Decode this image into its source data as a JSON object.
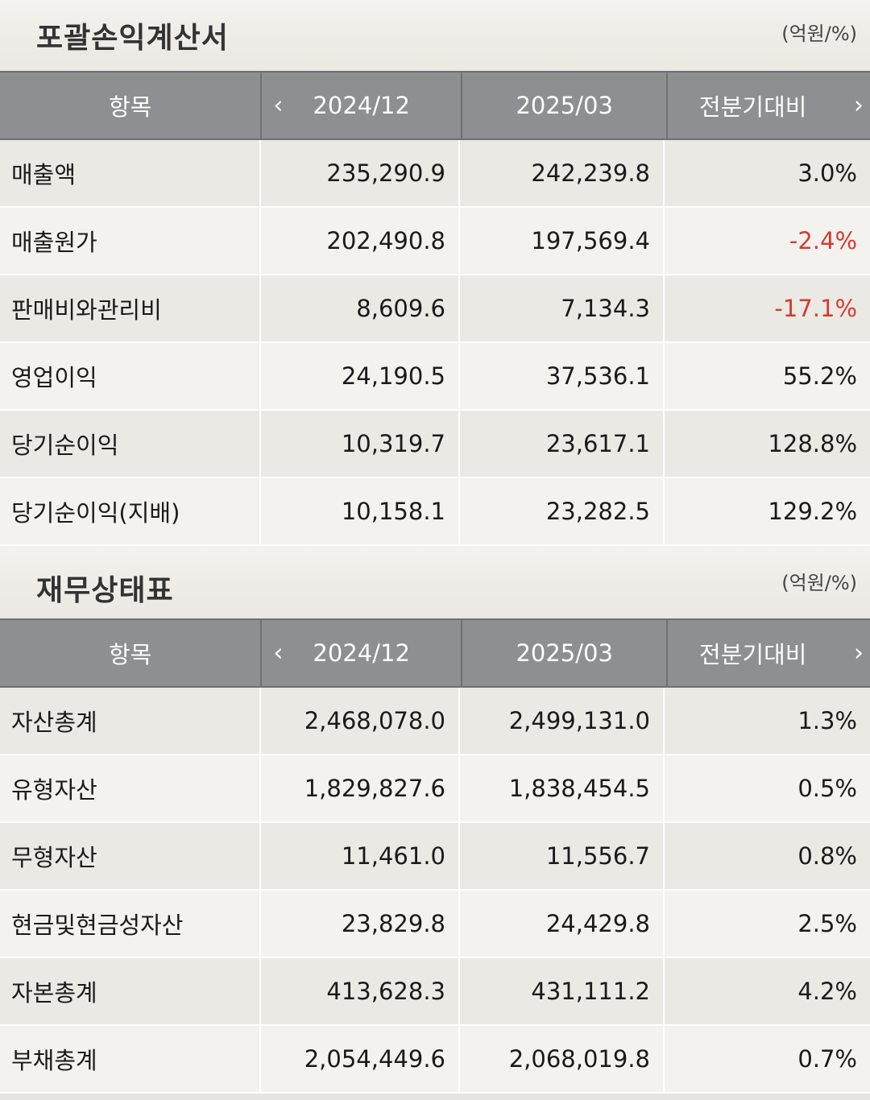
{
  "income": {
    "title": "포괄손익계산서",
    "unit": "(억원/%)",
    "headers": {
      "item": "항목",
      "col1": "2024/12",
      "col2": "2025/03",
      "col3": "전분기대비",
      "prev_icon": "chevron-left-icon",
      "next_icon": "chevron-right-icon"
    },
    "rows": [
      {
        "label": "매출액",
        "v1": "235,290.9",
        "v2": "242,239.8",
        "change": "3.0%"
      },
      {
        "label": "매출원가",
        "v1": "202,490.8",
        "v2": "197,569.4",
        "change": "-2.4%"
      },
      {
        "label": "판매비와관리비",
        "v1": "8,609.6",
        "v2": "7,134.3",
        "change": "-17.1%"
      },
      {
        "label": "영업이익",
        "v1": "24,190.5",
        "v2": "37,536.1",
        "change": "55.2%"
      },
      {
        "label": "당기순이익",
        "v1": "10,319.7",
        "v2": "23,617.1",
        "change": "128.8%"
      },
      {
        "label": "당기순이익(지배)",
        "v1": "10,158.1",
        "v2": "23,282.5",
        "change": "129.2%"
      }
    ]
  },
  "balance": {
    "title": "재무상태표",
    "unit": "(억원/%)",
    "headers": {
      "item": "항목",
      "col1": "2024/12",
      "col2": "2025/03",
      "col3": "전분기대비",
      "prev_icon": "chevron-left-icon",
      "next_icon": "chevron-right-icon"
    },
    "rows": [
      {
        "label": "자산총계",
        "v1": "2,468,078.0",
        "v2": "2,499,131.0",
        "change": "1.3%"
      },
      {
        "label": "유형자산",
        "v1": "1,829,827.6",
        "v2": "1,838,454.5",
        "change": "0.5%"
      },
      {
        "label": "무형자산",
        "v1": "11,461.0",
        "v2": "11,556.7",
        "change": "0.8%"
      },
      {
        "label": "현금및현금성자산",
        "v1": "23,829.8",
        "v2": "24,429.8",
        "change": "2.5%"
      },
      {
        "label": "자본총계",
        "v1": "413,628.3",
        "v2": "431,111.2",
        "change": "4.2%"
      },
      {
        "label": "부채총계",
        "v1": "2,054,449.6",
        "v2": "2,068,019.8",
        "change": "0.7%"
      }
    ]
  },
  "colors": {
    "header_bg": "#8d8f92",
    "negative": "#d63a2f"
  }
}
